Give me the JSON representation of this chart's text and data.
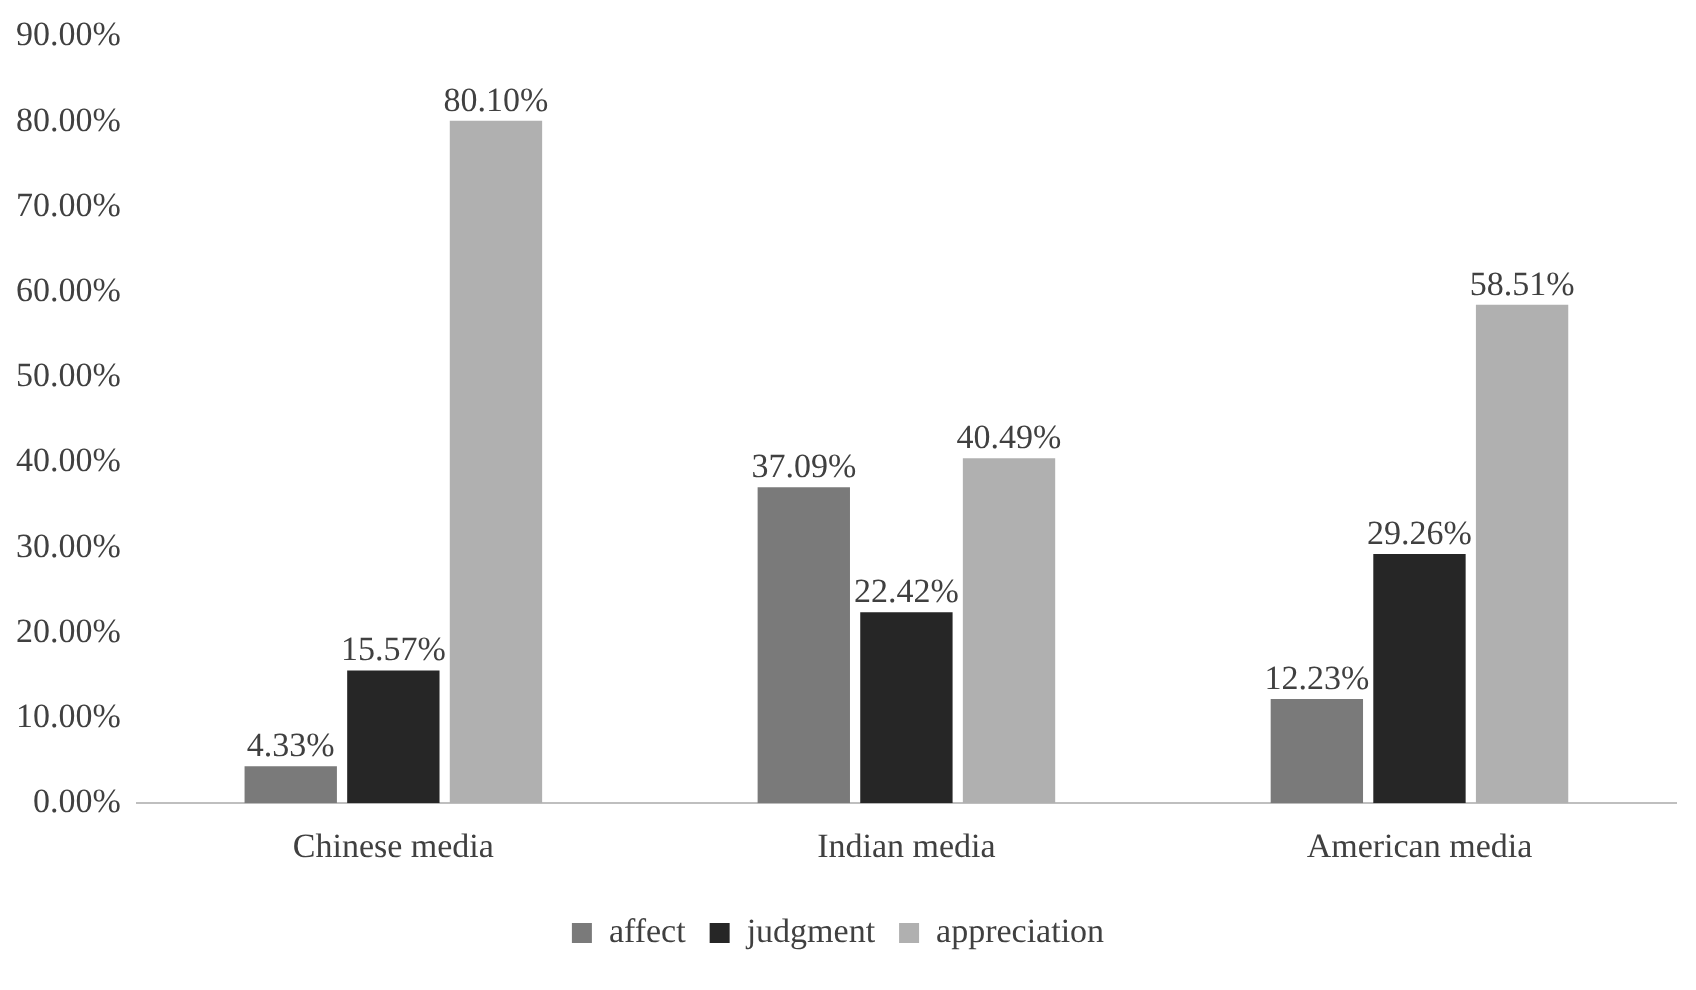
{
  "chart_data": {
    "type": "bar",
    "categories": [
      "Chinese media",
      "Indian media",
      "American media"
    ],
    "series": [
      {
        "name": "affect",
        "color": "#7a7a7a",
        "values": [
          4.33,
          37.09,
          12.23
        ],
        "value_labels": [
          "4.33%",
          "37.09%",
          "12.23%"
        ]
      },
      {
        "name": "judgment",
        "color": "#262626",
        "values": [
          15.57,
          22.42,
          29.26
        ],
        "value_labels": [
          "15.57%",
          "22.42%",
          "29.26%"
        ]
      },
      {
        "name": "appreciation",
        "color": "#b0b0b0",
        "values": [
          80.1,
          40.49,
          58.51
        ],
        "value_labels": [
          "80.10%",
          "40.49%",
          "58.51%"
        ]
      }
    ],
    "ylim": [
      0,
      90
    ],
    "yticks": [
      {
        "value": 0,
        "label": "0.00%"
      },
      {
        "value": 10,
        "label": "10.00%"
      },
      {
        "value": 20,
        "label": "20.00%"
      },
      {
        "value": 30,
        "label": "30.00%"
      },
      {
        "value": 40,
        "label": "40.00%"
      },
      {
        "value": 50,
        "label": "50.00%"
      },
      {
        "value": 60,
        "label": "60.00%"
      },
      {
        "value": 70,
        "label": "70.00%"
      },
      {
        "value": 80,
        "label": "80.00%"
      },
      {
        "value": 90,
        "label": "90.00%"
      }
    ],
    "grid": false,
    "legend": "bottom"
  }
}
